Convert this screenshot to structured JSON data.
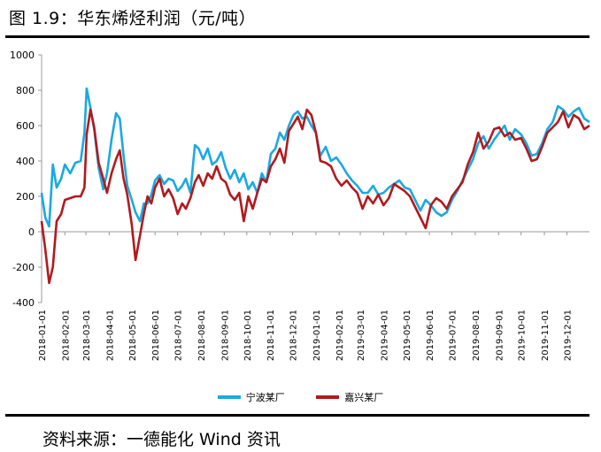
{
  "header": {
    "title": "图 1.9：华东烯烃利润（元/吨）"
  },
  "footer": {
    "source": "资料来源：一德能化  Wind 资讯"
  },
  "chart_data": {
    "type": "line",
    "title": "图 1.9：华东烯烃利润（元/吨）",
    "xlabel": "",
    "ylabel": "",
    "ylim": [
      -400,
      1000
    ],
    "yticks": [
      -400,
      -200,
      0,
      200,
      400,
      600,
      800,
      1000
    ],
    "xrange": [
      "2018-01-01",
      "2019-12-31"
    ],
    "xticks": [
      "2018-01-01",
      "2018-02-01",
      "2018-03-01",
      "2018-04-01",
      "2018-05-01",
      "2018-06-01",
      "2018-07-01",
      "2018-08-01",
      "2018-09-01",
      "2018-10-01",
      "2018-11-01",
      "2018-12-01",
      "2019-01-01",
      "2019-02-01",
      "2019-03-01",
      "2019-04-01",
      "2019-05-01",
      "2019-06-01",
      "2019-07-01",
      "2019-08-01",
      "2019-09-01",
      "2019-10-01",
      "2019-11-01",
      "2019-12-01"
    ],
    "grid": false,
    "legend": "bottom",
    "series": [
      {
        "name": "宁波某厂",
        "color": "#1ba9e1",
        "points": [
          [
            "2018-01-01",
            220
          ],
          [
            "2018-01-06",
            80
          ],
          [
            "2018-01-11",
            30
          ],
          [
            "2018-01-16",
            380
          ],
          [
            "2018-01-21",
            250
          ],
          [
            "2018-01-27",
            300
          ],
          [
            "2018-02-01",
            380
          ],
          [
            "2018-02-08",
            330
          ],
          [
            "2018-02-15",
            390
          ],
          [
            "2018-02-22",
            400
          ],
          [
            "2018-02-27",
            560
          ],
          [
            "2018-03-02",
            810
          ],
          [
            "2018-03-07",
            700
          ],
          [
            "2018-03-12",
            580
          ],
          [
            "2018-03-18",
            360
          ],
          [
            "2018-03-24",
            240
          ],
          [
            "2018-03-29",
            330
          ],
          [
            "2018-04-04",
            520
          ],
          [
            "2018-04-10",
            670
          ],
          [
            "2018-04-15",
            640
          ],
          [
            "2018-04-20",
            430
          ],
          [
            "2018-04-25",
            260
          ],
          [
            "2018-05-01",
            180
          ],
          [
            "2018-05-06",
            110
          ],
          [
            "2018-05-12",
            60
          ],
          [
            "2018-05-17",
            160
          ],
          [
            "2018-05-22",
            160
          ],
          [
            "2018-05-27",
            210
          ],
          [
            "2018-06-01",
            290
          ],
          [
            "2018-06-07",
            320
          ],
          [
            "2018-06-13",
            270
          ],
          [
            "2018-06-19",
            300
          ],
          [
            "2018-06-25",
            290
          ],
          [
            "2018-07-01",
            230
          ],
          [
            "2018-07-07",
            260
          ],
          [
            "2018-07-12",
            300
          ],
          [
            "2018-07-18",
            220
          ],
          [
            "2018-07-24",
            490
          ],
          [
            "2018-07-29",
            470
          ],
          [
            "2018-08-04",
            410
          ],
          [
            "2018-08-10",
            470
          ],
          [
            "2018-08-16",
            380
          ],
          [
            "2018-08-22",
            400
          ],
          [
            "2018-08-28",
            450
          ],
          [
            "2018-09-03",
            360
          ],
          [
            "2018-09-09",
            300
          ],
          [
            "2018-09-15",
            350
          ],
          [
            "2018-09-21",
            280
          ],
          [
            "2018-09-27",
            330
          ],
          [
            "2018-10-03",
            240
          ],
          [
            "2018-10-09",
            280
          ],
          [
            "2018-10-15",
            220
          ],
          [
            "2018-10-21",
            330
          ],
          [
            "2018-10-27",
            280
          ],
          [
            "2018-11-02",
            440
          ],
          [
            "2018-11-08",
            470
          ],
          [
            "2018-11-14",
            560
          ],
          [
            "2018-11-20",
            520
          ],
          [
            "2018-11-26",
            600
          ],
          [
            "2018-12-02",
            660
          ],
          [
            "2018-12-08",
            680
          ],
          [
            "2018-12-14",
            640
          ],
          [
            "2018-12-20",
            650
          ],
          [
            "2018-12-26",
            600
          ],
          [
            "2019-01-01",
            560
          ],
          [
            "2019-01-07",
            430
          ],
          [
            "2019-01-14",
            480
          ],
          [
            "2019-01-21",
            400
          ],
          [
            "2019-01-28",
            420
          ],
          [
            "2019-02-04",
            380
          ],
          [
            "2019-02-11",
            330
          ],
          [
            "2019-02-18",
            290
          ],
          [
            "2019-02-25",
            260
          ],
          [
            "2019-03-04",
            220
          ],
          [
            "2019-03-11",
            220
          ],
          [
            "2019-03-18",
            260
          ],
          [
            "2019-03-25",
            210
          ],
          [
            "2019-04-01",
            220
          ],
          [
            "2019-04-08",
            250
          ],
          [
            "2019-04-15",
            270
          ],
          [
            "2019-04-22",
            290
          ],
          [
            "2019-04-29",
            250
          ],
          [
            "2019-05-06",
            240
          ],
          [
            "2019-05-13",
            180
          ],
          [
            "2019-05-20",
            120
          ],
          [
            "2019-05-27",
            180
          ],
          [
            "2019-06-03",
            150
          ],
          [
            "2019-06-10",
            110
          ],
          [
            "2019-06-17",
            90
          ],
          [
            "2019-06-24",
            110
          ],
          [
            "2019-07-01",
            180
          ],
          [
            "2019-07-08",
            230
          ],
          [
            "2019-07-15",
            290
          ],
          [
            "2019-07-22",
            350
          ],
          [
            "2019-07-29",
            410
          ],
          [
            "2019-08-05",
            500
          ],
          [
            "2019-08-12",
            540
          ],
          [
            "2019-08-19",
            470
          ],
          [
            "2019-08-26",
            520
          ],
          [
            "2019-09-02",
            560
          ],
          [
            "2019-09-09",
            600
          ],
          [
            "2019-09-16",
            520
          ],
          [
            "2019-09-23",
            580
          ],
          [
            "2019-10-01",
            550
          ],
          [
            "2019-10-08",
            500
          ],
          [
            "2019-10-15",
            430
          ],
          [
            "2019-10-22",
            440
          ],
          [
            "2019-10-29",
            500
          ],
          [
            "2019-11-05",
            580
          ],
          [
            "2019-11-12",
            620
          ],
          [
            "2019-11-19",
            710
          ],
          [
            "2019-11-26",
            690
          ],
          [
            "2019-12-03",
            650
          ],
          [
            "2019-12-10",
            680
          ],
          [
            "2019-12-17",
            700
          ],
          [
            "2019-12-24",
            640
          ],
          [
            "2019-12-31",
            620
          ]
        ]
      },
      {
        "name": "嘉兴某厂",
        "color": "#b01a1e",
        "points": [
          [
            "2018-01-01",
            60
          ],
          [
            "2018-01-06",
            -100
          ],
          [
            "2018-01-11",
            -290
          ],
          [
            "2018-01-16",
            -200
          ],
          [
            "2018-01-21",
            60
          ],
          [
            "2018-01-27",
            100
          ],
          [
            "2018-02-01",
            180
          ],
          [
            "2018-02-08",
            190
          ],
          [
            "2018-02-15",
            200
          ],
          [
            "2018-02-22",
            200
          ],
          [
            "2018-02-27",
            250
          ],
          [
            "2018-03-02",
            550
          ],
          [
            "2018-03-07",
            690
          ],
          [
            "2018-03-12",
            590
          ],
          [
            "2018-03-18",
            390
          ],
          [
            "2018-03-24",
            300
          ],
          [
            "2018-03-29",
            220
          ],
          [
            "2018-04-04",
            330
          ],
          [
            "2018-04-10",
            410
          ],
          [
            "2018-04-15",
            460
          ],
          [
            "2018-04-20",
            300
          ],
          [
            "2018-04-25",
            210
          ],
          [
            "2018-05-01",
            40
          ],
          [
            "2018-05-06",
            -160
          ],
          [
            "2018-05-12",
            -20
          ],
          [
            "2018-05-17",
            100
          ],
          [
            "2018-05-22",
            200
          ],
          [
            "2018-05-27",
            160
          ],
          [
            "2018-06-01",
            250
          ],
          [
            "2018-06-07",
            300
          ],
          [
            "2018-06-13",
            200
          ],
          [
            "2018-06-19",
            240
          ],
          [
            "2018-06-25",
            190
          ],
          [
            "2018-07-01",
            100
          ],
          [
            "2018-07-07",
            160
          ],
          [
            "2018-07-12",
            130
          ],
          [
            "2018-07-18",
            190
          ],
          [
            "2018-07-24",
            280
          ],
          [
            "2018-07-29",
            320
          ],
          [
            "2018-08-04",
            260
          ],
          [
            "2018-08-10",
            330
          ],
          [
            "2018-08-16",
            300
          ],
          [
            "2018-08-22",
            370
          ],
          [
            "2018-08-28",
            300
          ],
          [
            "2018-09-03",
            280
          ],
          [
            "2018-09-09",
            210
          ],
          [
            "2018-09-15",
            180
          ],
          [
            "2018-09-21",
            220
          ],
          [
            "2018-09-27",
            60
          ],
          [
            "2018-10-03",
            200
          ],
          [
            "2018-10-09",
            130
          ],
          [
            "2018-10-15",
            220
          ],
          [
            "2018-10-21",
            300
          ],
          [
            "2018-10-27",
            280
          ],
          [
            "2018-11-02",
            370
          ],
          [
            "2018-11-08",
            410
          ],
          [
            "2018-11-14",
            470
          ],
          [
            "2018-11-20",
            390
          ],
          [
            "2018-11-26",
            570
          ],
          [
            "2018-12-02",
            610
          ],
          [
            "2018-12-08",
            650
          ],
          [
            "2018-12-14",
            580
          ],
          [
            "2018-12-20",
            690
          ],
          [
            "2018-12-26",
            660
          ],
          [
            "2019-01-01",
            560
          ],
          [
            "2019-01-07",
            400
          ],
          [
            "2019-01-14",
            390
          ],
          [
            "2019-01-21",
            370
          ],
          [
            "2019-01-28",
            300
          ],
          [
            "2019-02-04",
            260
          ],
          [
            "2019-02-11",
            290
          ],
          [
            "2019-02-18",
            250
          ],
          [
            "2019-02-25",
            220
          ],
          [
            "2019-03-04",
            130
          ],
          [
            "2019-03-11",
            200
          ],
          [
            "2019-03-18",
            160
          ],
          [
            "2019-03-25",
            210
          ],
          [
            "2019-04-01",
            150
          ],
          [
            "2019-04-08",
            190
          ],
          [
            "2019-04-15",
            270
          ],
          [
            "2019-04-22",
            250
          ],
          [
            "2019-04-29",
            230
          ],
          [
            "2019-05-06",
            200
          ],
          [
            "2019-05-13",
            140
          ],
          [
            "2019-05-20",
            80
          ],
          [
            "2019-05-27",
            20
          ],
          [
            "2019-06-03",
            150
          ],
          [
            "2019-06-10",
            190
          ],
          [
            "2019-06-17",
            170
          ],
          [
            "2019-06-24",
            130
          ],
          [
            "2019-07-01",
            200
          ],
          [
            "2019-07-08",
            240
          ],
          [
            "2019-07-15",
            280
          ],
          [
            "2019-07-22",
            380
          ],
          [
            "2019-07-29",
            450
          ],
          [
            "2019-08-05",
            560
          ],
          [
            "2019-08-12",
            470
          ],
          [
            "2019-08-19",
            510
          ],
          [
            "2019-08-26",
            580
          ],
          [
            "2019-09-02",
            590
          ],
          [
            "2019-09-09",
            540
          ],
          [
            "2019-09-16",
            560
          ],
          [
            "2019-09-23",
            520
          ],
          [
            "2019-10-01",
            530
          ],
          [
            "2019-10-08",
            470
          ],
          [
            "2019-10-15",
            400
          ],
          [
            "2019-10-22",
            410
          ],
          [
            "2019-10-29",
            480
          ],
          [
            "2019-11-05",
            560
          ],
          [
            "2019-11-12",
            590
          ],
          [
            "2019-11-19",
            620
          ],
          [
            "2019-11-26",
            680
          ],
          [
            "2019-12-03",
            590
          ],
          [
            "2019-12-10",
            660
          ],
          [
            "2019-12-17",
            640
          ],
          [
            "2019-12-24",
            580
          ],
          [
            "2019-12-31",
            600
          ]
        ]
      }
    ]
  }
}
